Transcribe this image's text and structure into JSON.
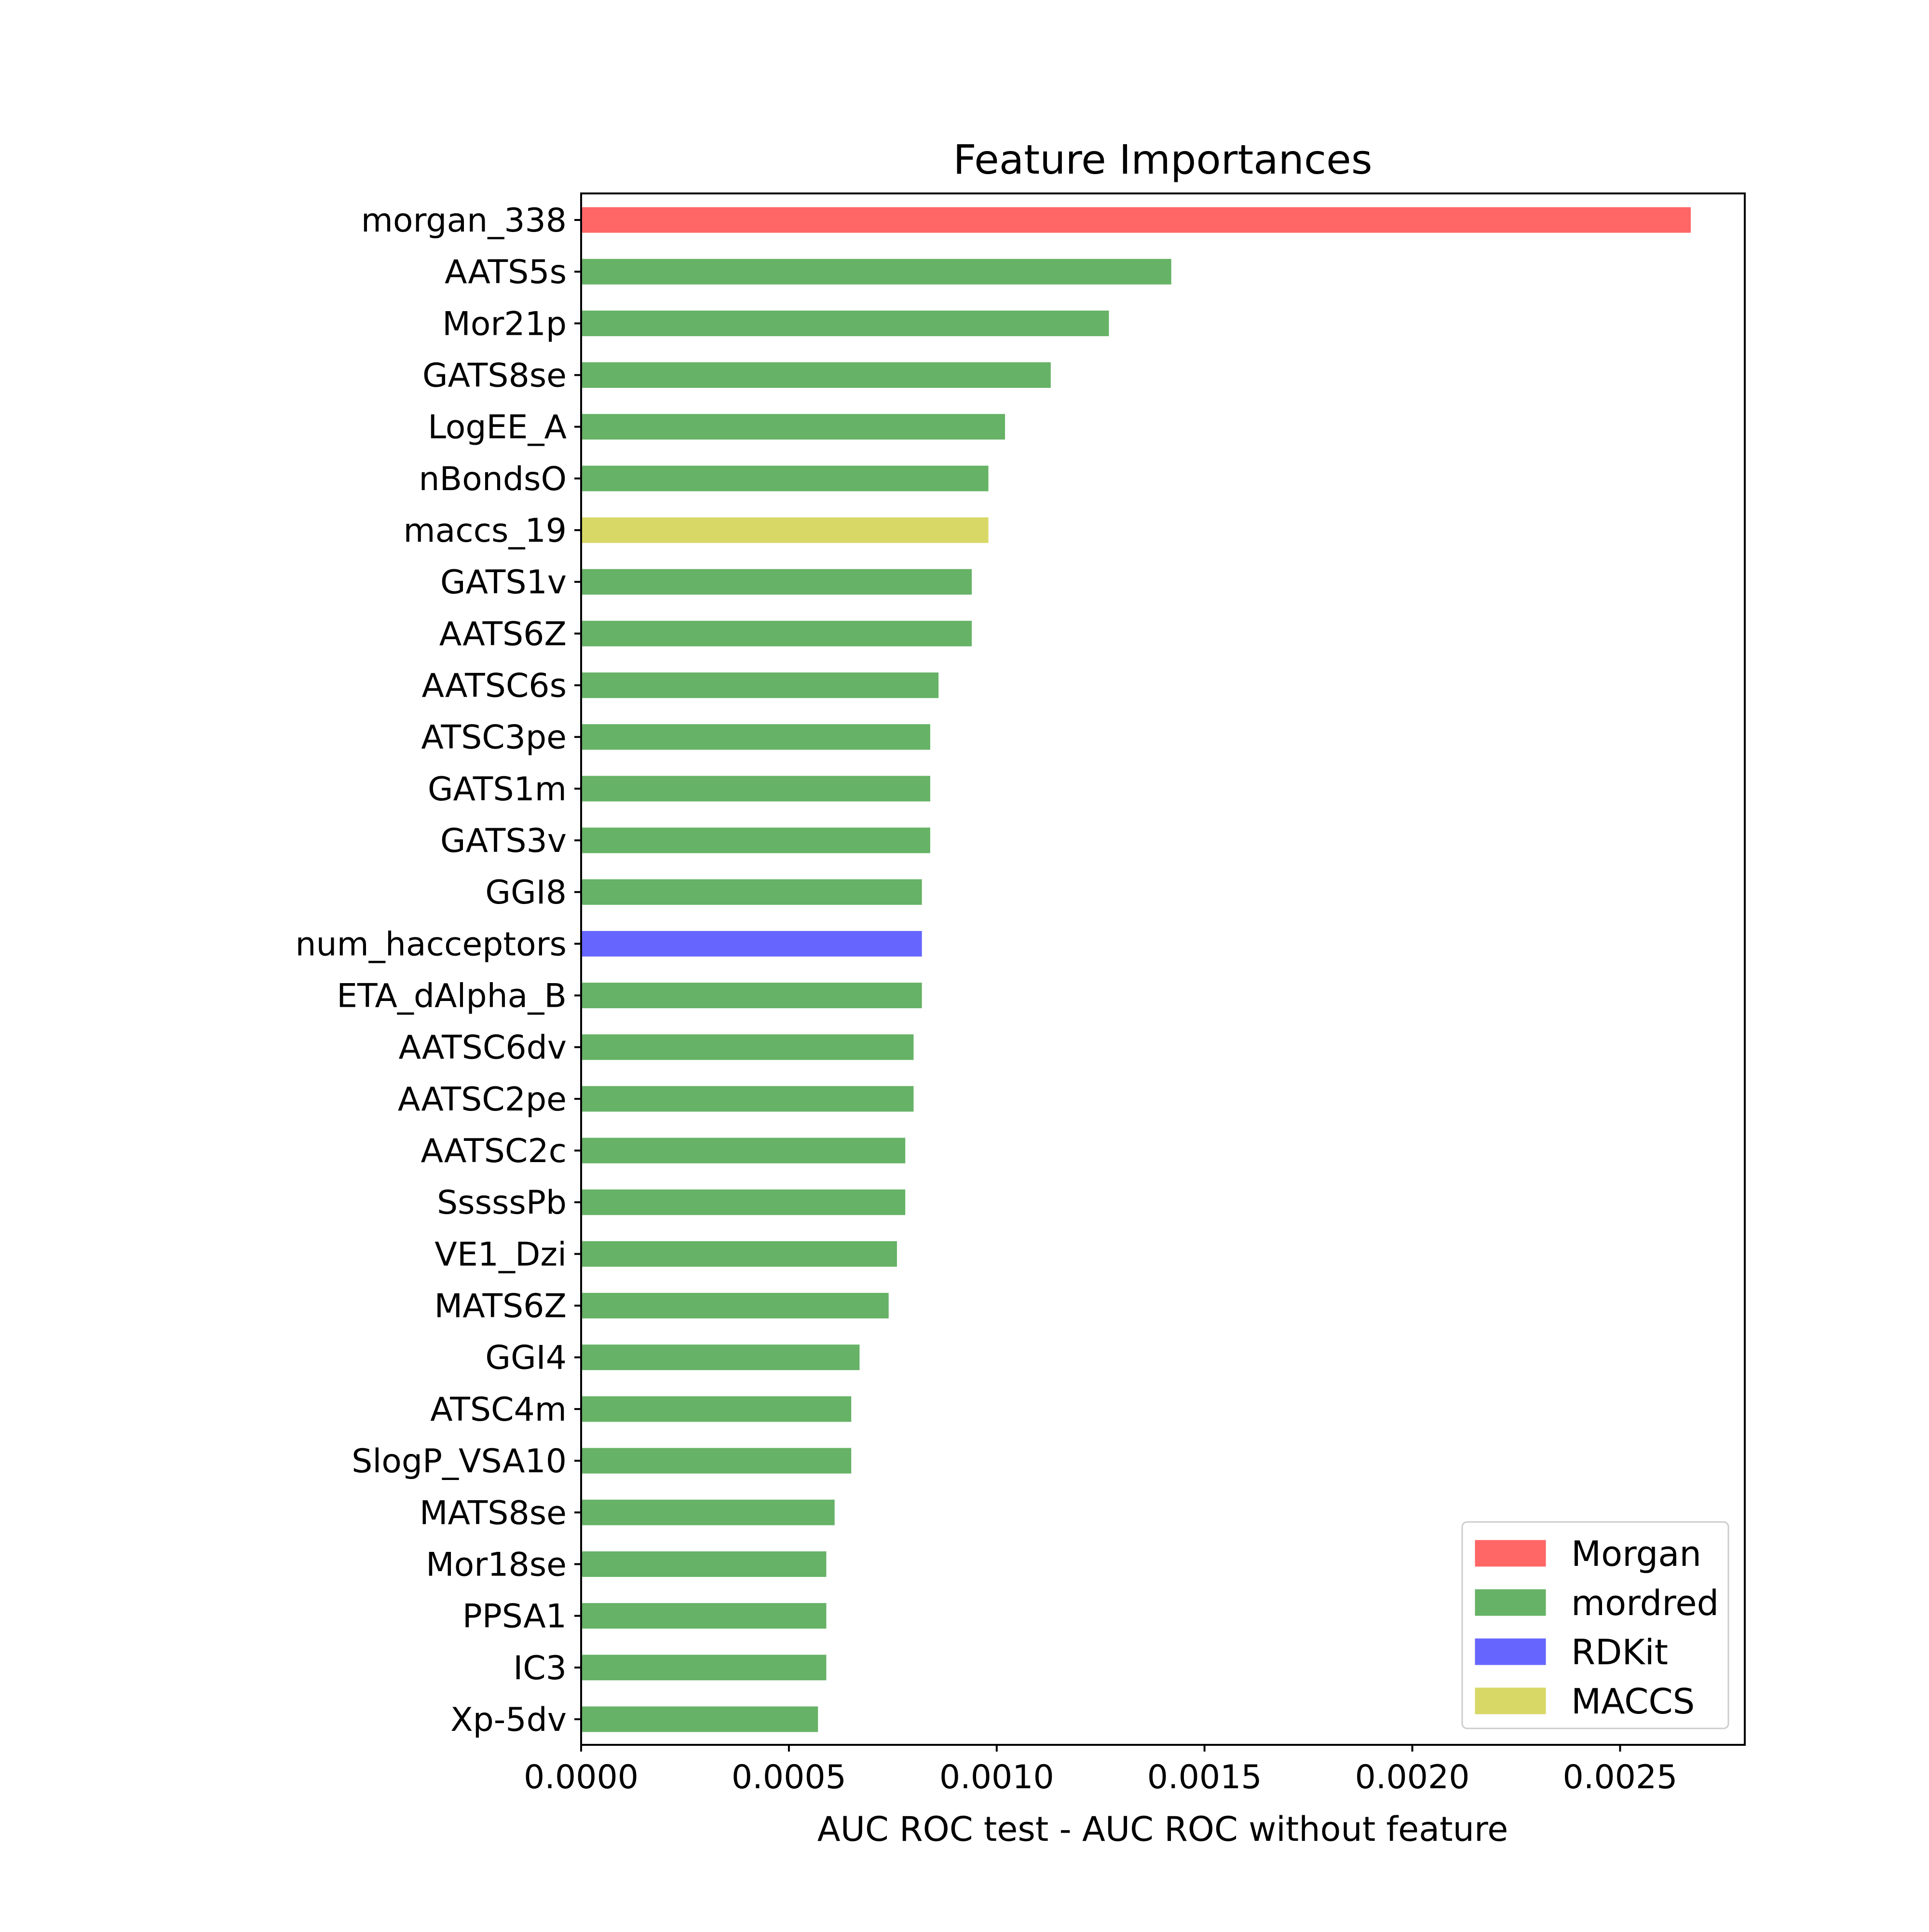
{
  "chart_data": {
    "type": "bar",
    "orientation": "horizontal",
    "title": "Feature Importances",
    "xlabel": "AUC ROC test - AUC ROC without feature",
    "ylabel": "",
    "xlim": [
      0,
      0.0028
    ],
    "xticks": [
      "0.0000",
      "0.0005",
      "0.0010",
      "0.0015",
      "0.0020",
      "0.0025"
    ],
    "xtick_values": [
      0,
      0.0005,
      0.001,
      0.0015,
      0.002,
      0.0025
    ],
    "grid": false,
    "legend_position": "lower-right",
    "groups": [
      {
        "name": "Morgan",
        "color": "#ff6666"
      },
      {
        "name": "mordred",
        "color": "#66b266"
      },
      {
        "name": "RDKit",
        "color": "#6666ff"
      },
      {
        "name": "MACCS",
        "color": "#d8d866"
      }
    ],
    "bars": [
      {
        "label": "morgan_338",
        "value": 0.00267,
        "group": "Morgan"
      },
      {
        "label": "AATS5s",
        "value": 0.00142,
        "group": "mordred"
      },
      {
        "label": "Mor21p",
        "value": 0.00127,
        "group": "mordred"
      },
      {
        "label": "GATS8se",
        "value": 0.00113,
        "group": "mordred"
      },
      {
        "label": "LogEE_A",
        "value": 0.00102,
        "group": "mordred"
      },
      {
        "label": "nBondsO",
        "value": 0.00098,
        "group": "mordred"
      },
      {
        "label": "maccs_19",
        "value": 0.00098,
        "group": "MACCS"
      },
      {
        "label": "GATS1v",
        "value": 0.00094,
        "group": "mordred"
      },
      {
        "label": "AATS6Z",
        "value": 0.00094,
        "group": "mordred"
      },
      {
        "label": "AATSC6s",
        "value": 0.00086,
        "group": "mordred"
      },
      {
        "label": "ATSC3pe",
        "value": 0.00084,
        "group": "mordred"
      },
      {
        "label": "GATS1m",
        "value": 0.00084,
        "group": "mordred"
      },
      {
        "label": "GATS3v",
        "value": 0.00084,
        "group": "mordred"
      },
      {
        "label": "GGI8",
        "value": 0.00082,
        "group": "mordred"
      },
      {
        "label": "num_hacceptors",
        "value": 0.00082,
        "group": "RDKit"
      },
      {
        "label": "ETA_dAlpha_B",
        "value": 0.00082,
        "group": "mordred"
      },
      {
        "label": "AATSC6dv",
        "value": 0.0008,
        "group": "mordred"
      },
      {
        "label": "AATSC2pe",
        "value": 0.0008,
        "group": "mordred"
      },
      {
        "label": "AATSC2c",
        "value": 0.00078,
        "group": "mordred"
      },
      {
        "label": "SssssPb",
        "value": 0.00078,
        "group": "mordred"
      },
      {
        "label": "VE1_Dzi",
        "value": 0.00076,
        "group": "mordred"
      },
      {
        "label": "MATS6Z",
        "value": 0.00074,
        "group": "mordred"
      },
      {
        "label": "GGI4",
        "value": 0.00067,
        "group": "mordred"
      },
      {
        "label": "ATSC4m",
        "value": 0.00065,
        "group": "mordred"
      },
      {
        "label": "SlogP_VSA10",
        "value": 0.00065,
        "group": "mordred"
      },
      {
        "label": "MATS8se",
        "value": 0.00061,
        "group": "mordred"
      },
      {
        "label": "Mor18se",
        "value": 0.00059,
        "group": "mordred"
      },
      {
        "label": "PPSA1",
        "value": 0.00059,
        "group": "mordred"
      },
      {
        "label": "IC3",
        "value": 0.00059,
        "group": "mordred"
      },
      {
        "label": "Xp-5dv",
        "value": 0.00057,
        "group": "mordred"
      }
    ]
  }
}
